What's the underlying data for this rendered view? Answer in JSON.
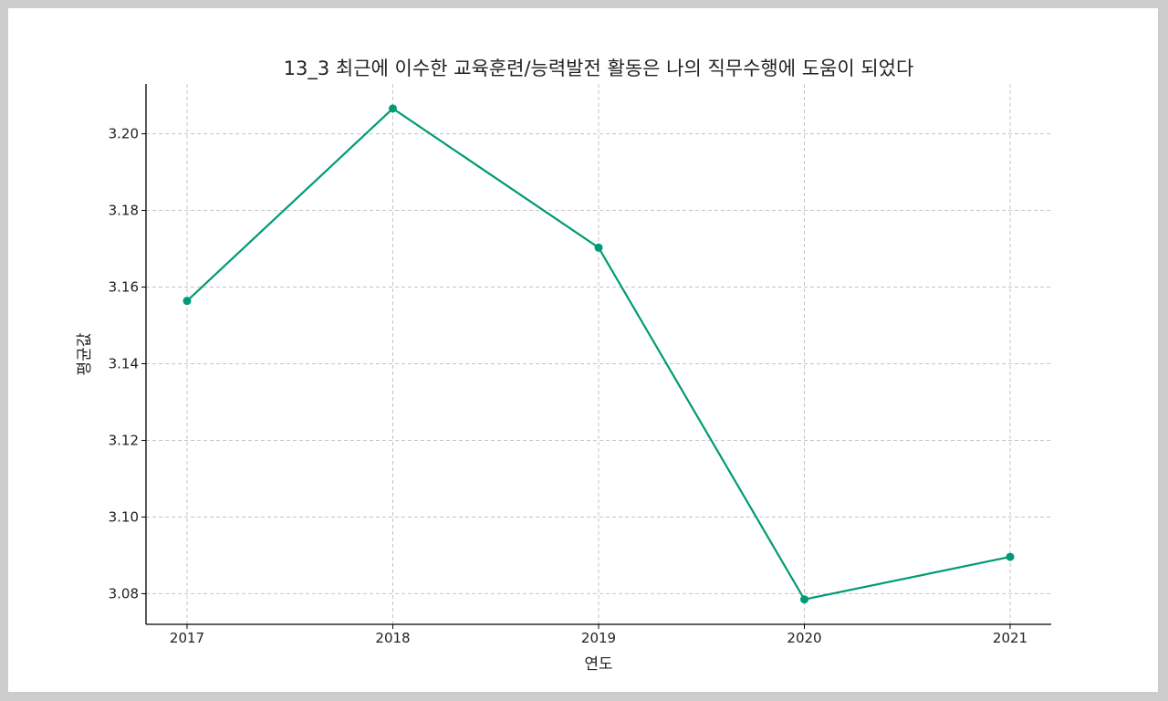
{
  "chart_data": {
    "type": "line",
    "title": "13_3 최근에 이수한 교육훈련/능력발전 활동은 나의 직무수행에 도움이 되었다",
    "xlabel": "연도",
    "ylabel": "평균값",
    "categories": [
      "2017",
      "2018",
      "2019",
      "2020",
      "2021"
    ],
    "series": [
      {
        "values": [
          3.1564,
          3.2066,
          3.1703,
          3.0785,
          3.0896
        ]
      }
    ],
    "ylim": [
      3.072,
      3.213
    ],
    "yticks": [
      3.08,
      3.1,
      3.12,
      3.14,
      3.16,
      3.18,
      3.2
    ],
    "ytick_labels": [
      "3.08",
      "3.10",
      "3.12",
      "3.14",
      "3.16",
      "3.18",
      "3.20"
    ],
    "grid": true,
    "line_color": "#009a75",
    "marker_color": "#009a75"
  }
}
